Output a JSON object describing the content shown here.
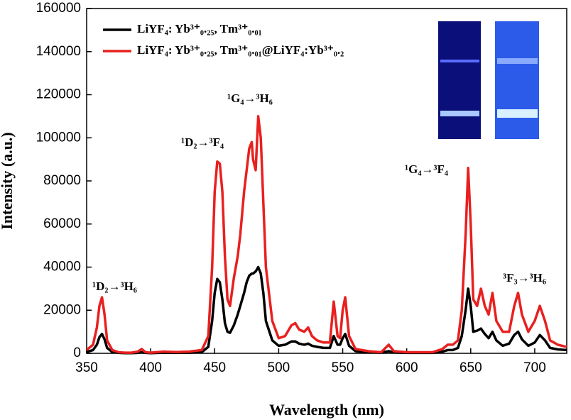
{
  "chart_data": {
    "type": "line",
    "x_label": "Wavelength (nm)",
    "y_label": "Intensity (a.u.)",
    "xlim": [
      350,
      725
    ],
    "ylim": [
      0,
      160000
    ],
    "xticks": [
      350,
      400,
      450,
      500,
      550,
      600,
      650,
      700
    ],
    "yticks": [
      0,
      20000,
      40000,
      60000,
      80000,
      100000,
      120000,
      140000,
      160000
    ],
    "annotations": [
      "¹D₂→³H₆",
      "¹D₂→³F₄",
      "¹G₄→³H₆",
      "¹G₄→³F₄",
      "³F₃→³H₆"
    ],
    "x": [
      350,
      355,
      358,
      360,
      362,
      364,
      366,
      370,
      375,
      380,
      385,
      390,
      393,
      396,
      400,
      410,
      420,
      430,
      440,
      445,
      448,
      450,
      452,
      454,
      456,
      458,
      460,
      462,
      465,
      468,
      470,
      473,
      475,
      477,
      479,
      480,
      482,
      484,
      486,
      488,
      490,
      495,
      500,
      505,
      510,
      513,
      516,
      520,
      523,
      526,
      530,
      535,
      540,
      543,
      546,
      548,
      550,
      552,
      555,
      560,
      570,
      580,
      586,
      590,
      600,
      610,
      620,
      628,
      632,
      636,
      640,
      643,
      646,
      648,
      650,
      652,
      655,
      658,
      661,
      664,
      667,
      670,
      675,
      680,
      684,
      687,
      690,
      695,
      700,
      704,
      708,
      712,
      718,
      725
    ],
    "series": [
      {
        "name": "LiYF₄: Yb³⁺₀.₂₅, Tm³⁺₀.₀₁",
        "color": "#000000",
        "values": [
          600,
          1500,
          4000,
          7500,
          9000,
          6500,
          2500,
          600,
          200,
          100,
          100,
          200,
          500,
          200,
          100,
          300,
          200,
          300,
          600,
          3000,
          15000,
          28000,
          34500,
          33000,
          25000,
          14000,
          10000,
          9500,
          13000,
          18000,
          22000,
          28000,
          33000,
          36000,
          37000,
          37000,
          38000,
          40000,
          37000,
          28000,
          15000,
          6000,
          3500,
          4000,
          5500,
          5500,
          4500,
          4000,
          4500,
          3500,
          3000,
          2500,
          2500,
          8000,
          4000,
          4000,
          7000,
          9000,
          3500,
          1000,
          500,
          300,
          1000,
          400,
          200,
          200,
          200,
          800,
          1500,
          1500,
          2500,
          8000,
          20000,
          30000,
          22000,
          10000,
          10500,
          11500,
          9000,
          7000,
          10000,
          6000,
          3500,
          4500,
          8500,
          10000,
          6500,
          3500,
          5000,
          8500,
          6000,
          2500,
          1800,
          1500
        ]
      },
      {
        "name": "LiYF₄: Yb³⁺₀.₂₅, Tm³⁺₀.₀₁@LiYF₄:Yb³⁺₀.₂",
        "color": "#e8201f",
        "values": [
          1500,
          4000,
          12000,
          22000,
          26000,
          18000,
          6000,
          1500,
          500,
          300,
          300,
          800,
          2000,
          500,
          300,
          800,
          600,
          800,
          1500,
          8000,
          40000,
          75000,
          89000,
          88000,
          75000,
          45000,
          25000,
          22000,
          35000,
          45000,
          55000,
          75000,
          85000,
          95000,
          98000,
          90000,
          85000,
          110000,
          100000,
          70000,
          40000,
          15000,
          7000,
          8000,
          13000,
          14000,
          11000,
          10000,
          12000,
          8000,
          6000,
          5000,
          5000,
          24000,
          8000,
          7000,
          20000,
          26000,
          8000,
          2000,
          1000,
          500,
          4000,
          1000,
          500,
          500,
          500,
          2000,
          4000,
          4000,
          6000,
          20000,
          55000,
          86000,
          60000,
          25000,
          22000,
          30000,
          22000,
          18000,
          28000,
          15000,
          10000,
          10000,
          22000,
          28000,
          18000,
          10000,
          15000,
          22000,
          15000,
          6000,
          4000,
          3000
        ]
      }
    ]
  }
}
